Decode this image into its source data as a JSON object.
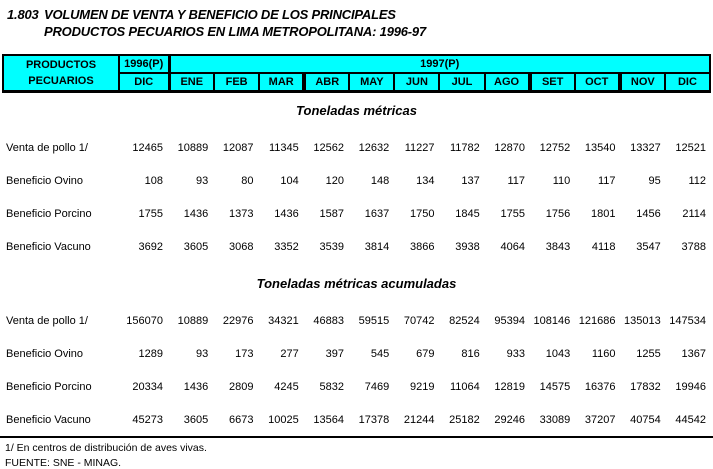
{
  "title": {
    "number": "1.803",
    "line1": "VOLUMEN DE VENTA Y BENEFICIO DE LOS PRINCIPALES",
    "line2": "PRODUCTOS PECUARIOS EN LIMA METROPOLITANA: 1996-97"
  },
  "table": {
    "header": {
      "row_label_top": "PRODUCTOS",
      "row_label_bottom": "PECUARIOS",
      "year_prev": "1996(P)",
      "year_prev_month": "DIC",
      "year_curr": "1997(P)",
      "months": [
        "ENE",
        "FEB",
        "MAR",
        "ABR",
        "MAY",
        "JUN",
        "JUL",
        "AGO",
        "SET",
        "OCT",
        "NOV",
        "DIC"
      ]
    },
    "sections": [
      {
        "title": "Toneladas métricas",
        "rows": [
          {
            "label": "Venta de pollo 1/",
            "values": [
              12465,
              10889,
              12087,
              11345,
              12562,
              12632,
              11227,
              11782,
              12870,
              12752,
              13540,
              13327,
              12521
            ]
          },
          {
            "label": "Beneficio Ovino",
            "values": [
              108,
              93,
              80,
              104,
              120,
              148,
              134,
              137,
              117,
              110,
              117,
              95,
              112
            ]
          },
          {
            "label": "Beneficio Porcino",
            "values": [
              1755,
              1436,
              1373,
              1436,
              1587,
              1637,
              1750,
              1845,
              1755,
              1756,
              1801,
              1456,
              2114
            ]
          },
          {
            "label": "Beneficio Vacuno",
            "values": [
              3692,
              3605,
              3068,
              3352,
              3539,
              3814,
              3866,
              3938,
              4064,
              3843,
              4118,
              3547,
              3788
            ]
          }
        ]
      },
      {
        "title": "Toneladas métricas acumuladas",
        "rows": [
          {
            "label": "Venta de pollo 1/",
            "values": [
              156070,
              10889,
              22976,
              34321,
              46883,
              59515,
              70742,
              82524,
              95394,
              108146,
              121686,
              135013,
              147534
            ]
          },
          {
            "label": "Beneficio Ovino",
            "values": [
              1289,
              93,
              173,
              277,
              397,
              545,
              679,
              816,
              933,
              1043,
              1160,
              1255,
              1367
            ]
          },
          {
            "label": "Beneficio Porcino",
            "values": [
              20334,
              1436,
              2809,
              4245,
              5832,
              7469,
              9219,
              11064,
              12819,
              14575,
              16376,
              17832,
              19946
            ]
          },
          {
            "label": "Beneficio Vacuno",
            "values": [
              45273,
              3605,
              6673,
              10025,
              13564,
              17378,
              21244,
              25182,
              29246,
              33089,
              37207,
              40754,
              44542
            ]
          }
        ]
      }
    ]
  },
  "footnotes": [
    "1/ En centros de distribución de aves vivas.",
    "FUENTE: SNE - MINAG."
  ],
  "colors": {
    "header_bg": "#00FFFF",
    "border": "#000000",
    "text": "#000000"
  }
}
